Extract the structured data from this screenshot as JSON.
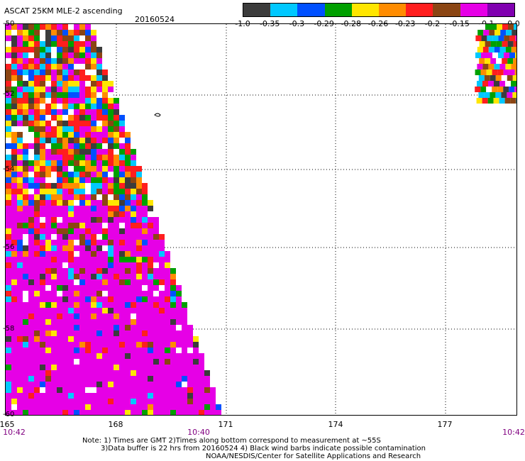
{
  "header": {
    "title": "ASCAT 25KM MLE-2 ascending",
    "date": "20160524"
  },
  "color_scale": {
    "labels": [
      "-1.0",
      "-0.35",
      "-0.3",
      "-0.29",
      "-0.28",
      "-0.26",
      "-0.23",
      "-0.2",
      "-0.15",
      "-0.1",
      "0.0"
    ],
    "colors": [
      "#3c3c3c",
      "#00c8ff",
      "#0050ff",
      "#00a000",
      "#ffe600",
      "#ff8c00",
      "#ff1e1e",
      "#8b4513",
      "#e600e6",
      "#8000b0"
    ]
  },
  "map": {
    "lat_labels": [
      "-50",
      "-52",
      "-54",
      "-56",
      "-58",
      "-60"
    ],
    "lon_labels": [
      "165",
      "168",
      "171",
      "174",
      "177"
    ],
    "time_labels": {
      "left": "10:42",
      "middle": "10:40",
      "right": "10:42"
    }
  },
  "notes": {
    "line1": "Note: 1) Times are GMT 2)Times along bottom correspond to measurement at ~55S",
    "line2": "3)Data buffer is 22 hrs from 20160524 4) Black wind barbs indicate possible contamination",
    "line3": "NOAA/NESDIS/Center for Satellite Applications and Research"
  }
}
